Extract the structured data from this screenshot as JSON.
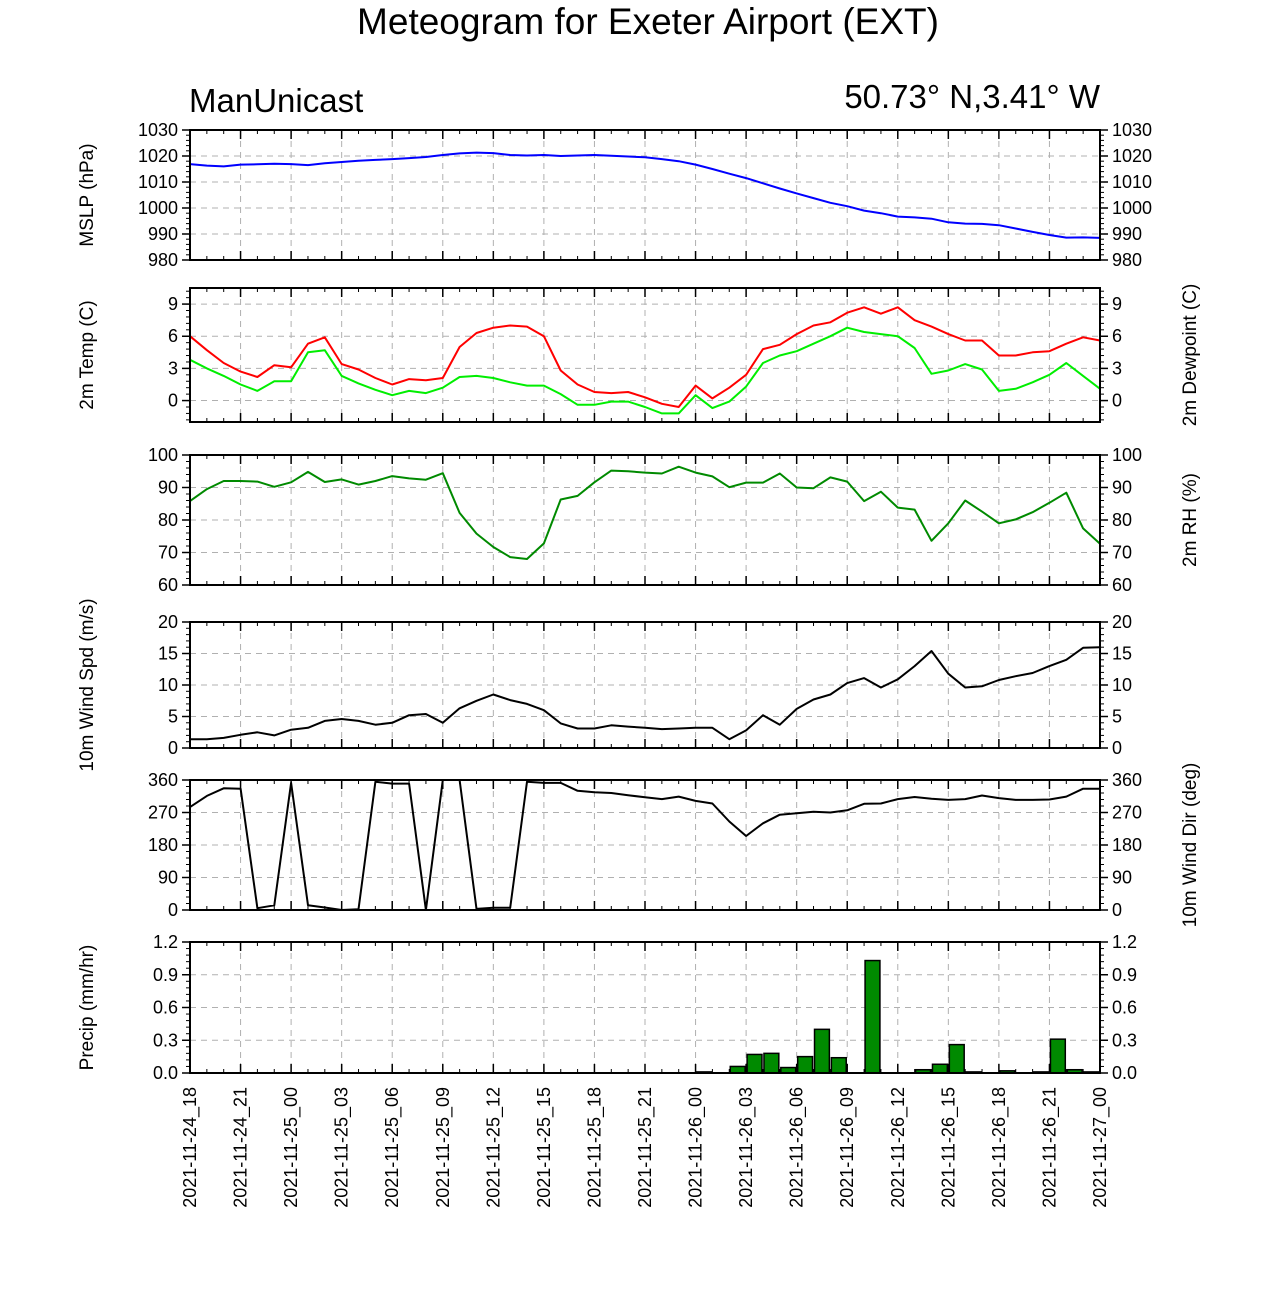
{
  "title": "Meteogram for Exeter Airport (EXT)",
  "model": "ManUnicast",
  "location": "50.73° N,3.41° W",
  "colors": {
    "mslp": "#0000ff",
    "temp": "#ff0000",
    "dewpoint": "#00ee00",
    "rh": "#008a00",
    "wind": "#000000",
    "precip_fill": "#008a00",
    "grid": "#b0b0b0"
  },
  "chart_data": [
    {
      "type": "line",
      "name": "mslp",
      "ylabel": "MSLP (hPa)",
      "ylabel_right": "",
      "ylim": [
        980,
        1030
      ],
      "yticks": [
        980,
        990,
        1000,
        1010,
        1020,
        1030
      ],
      "ytick_labels": [
        "980",
        "990",
        "1000",
        "1010",
        "1020",
        "1030"
      ],
      "x": [
        0,
        1,
        2,
        3,
        4,
        5,
        6,
        7,
        8,
        9,
        10,
        11,
        12,
        13,
        14,
        15,
        16,
        17,
        18,
        19,
        20,
        21,
        22,
        23,
        24,
        25,
        26,
        27,
        28,
        29,
        30,
        31,
        32,
        33,
        34,
        35,
        36,
        37,
        38,
        39,
        40,
        41,
        42,
        43,
        44,
        45,
        46,
        47,
        48,
        49,
        50,
        51,
        52,
        53,
        54
      ],
      "series": [
        {
          "values": [
            1016.9,
            1016.3,
            1016.0,
            1016.7,
            1016.8,
            1017.0,
            1016.9,
            1016.5,
            1017.2,
            1017.7,
            1018.2,
            1018.5,
            1018.8,
            1019.2,
            1019.6,
            1020.4,
            1021.0,
            1021.3,
            1021.1,
            1020.4,
            1020.2,
            1020.4,
            1020.0,
            1020.2,
            1020.4,
            1020.1,
            1019.8,
            1019.5,
            1018.8,
            1018.0,
            1016.7,
            1015.0,
            1013.2,
            1011.5,
            1009.5,
            1007.5,
            1005.6,
            1003.8,
            1002.0,
            1000.7,
            999.0,
            998.0,
            996.7,
            996.4,
            995.9,
            994.5,
            994.0,
            993.9,
            993.4,
            992.1,
            990.8,
            989.6,
            988.6,
            988.7,
            988.5
          ]
        }
      ]
    },
    {
      "type": "line",
      "name": "temp-dewpoint",
      "ylabel": "2m Temp (C)",
      "ylabel_right": "2m Dewpoint (C)",
      "ylim": [
        -2,
        10.5
      ],
      "yticks": [
        0,
        3,
        6,
        9
      ],
      "ytick_labels": [
        "0",
        "3",
        "6",
        "9"
      ],
      "x": [
        0,
        1,
        2,
        3,
        4,
        5,
        6,
        7,
        8,
        9,
        10,
        11,
        12,
        13,
        14,
        15,
        16,
        17,
        18,
        19,
        20,
        21,
        22,
        23,
        24,
        25,
        26,
        27,
        28,
        29,
        30,
        31,
        32,
        33,
        34,
        35,
        36,
        37,
        38,
        39,
        40,
        41,
        42,
        43,
        44,
        45,
        46,
        47,
        48,
        49,
        50,
        51,
        52,
        53,
        54
      ],
      "series": [
        {
          "name": "temp",
          "values": [
            6.0,
            4.7,
            3.5,
            2.7,
            2.2,
            3.3,
            3.1,
            5.3,
            5.9,
            3.4,
            2.9,
            2.1,
            1.5,
            2.0,
            1.9,
            2.1,
            5.0,
            6.3,
            6.8,
            7.0,
            6.9,
            6.0,
            2.8,
            1.5,
            0.8,
            0.7,
            0.8,
            0.3,
            -0.3,
            -0.6,
            1.4,
            0.2,
            1.2,
            2.4,
            4.8,
            5.2,
            6.2,
            7.0,
            7.3,
            8.2,
            8.7,
            8.1,
            8.7,
            7.5,
            6.9,
            6.2,
            5.6,
            5.6,
            4.2,
            4.2,
            4.5,
            4.6,
            5.3,
            5.9,
            5.6
          ]
        },
        {
          "name": "dewpoint",
          "values": [
            3.8,
            3.0,
            2.3,
            1.5,
            0.9,
            1.8,
            1.8,
            4.5,
            4.7,
            2.3,
            1.6,
            1.0,
            0.5,
            0.9,
            0.7,
            1.2,
            2.2,
            2.3,
            2.1,
            1.7,
            1.4,
            1.4,
            0.6,
            -0.4,
            -0.4,
            -0.1,
            -0.1,
            -0.6,
            -1.2,
            -1.2,
            0.5,
            -0.7,
            -0.1,
            1.3,
            3.5,
            4.2,
            4.6,
            5.3,
            6.0,
            6.8,
            6.4,
            6.2,
            6.0,
            4.9,
            2.5,
            2.8,
            3.4,
            2.9,
            0.9,
            1.1,
            1.7,
            2.4,
            3.5,
            2.3,
            1.1
          ]
        }
      ]
    },
    {
      "type": "line",
      "name": "rh",
      "ylabel": "",
      "ylabel_right": "2m RH (%)",
      "ylim": [
        60,
        100
      ],
      "yticks": [
        60,
        70,
        80,
        90,
        100
      ],
      "ytick_labels": [
        "60",
        "70",
        "80",
        "90",
        "100"
      ],
      "x": [
        0,
        1,
        2,
        3,
        4,
        5,
        6,
        7,
        8,
        9,
        10,
        11,
        12,
        13,
        14,
        15,
        16,
        17,
        18,
        19,
        20,
        21,
        22,
        23,
        24,
        25,
        26,
        27,
        28,
        29,
        30,
        31,
        32,
        33,
        34,
        35,
        36,
        37,
        38,
        39,
        40,
        41,
        42,
        43,
        44,
        45,
        46,
        47,
        48,
        49,
        50,
        51,
        52,
        53,
        54
      ],
      "series": [
        {
          "values": [
            85.8,
            89.5,
            92.0,
            92.0,
            91.8,
            90.2,
            91.6,
            94.8,
            91.7,
            92.5,
            90.9,
            92.0,
            93.5,
            92.8,
            92.4,
            94.4,
            82.2,
            75.8,
            71.7,
            68.6,
            68.0,
            72.8,
            86.3,
            87.4,
            91.6,
            95.2,
            95.0,
            94.6,
            94.3,
            96.4,
            94.6,
            93.4,
            90.1,
            91.5,
            91.5,
            94.3,
            90.0,
            89.8,
            93.1,
            91.8,
            85.8,
            88.7,
            83.8,
            83.2,
            73.6,
            79.0,
            86.0,
            82.6,
            79.0,
            80.2,
            82.4,
            85.3,
            88.4,
            77.4,
            72.7
          ]
        }
      ]
    },
    {
      "type": "line",
      "name": "wind-speed",
      "ylabel": "10m Wind Spd (m/s)",
      "ylabel_right": "",
      "ylim": [
        0,
        20
      ],
      "yticks": [
        0,
        5,
        10,
        15,
        20
      ],
      "ytick_labels": [
        "0",
        "5",
        "10",
        "15",
        "20"
      ],
      "x": [
        0,
        1,
        2,
        3,
        4,
        5,
        6,
        7,
        8,
        9,
        10,
        11,
        12,
        13,
        14,
        15,
        16,
        17,
        18,
        19,
        20,
        21,
        22,
        23,
        24,
        25,
        26,
        27,
        28,
        29,
        30,
        31,
        32,
        33,
        34,
        35,
        36,
        37,
        38,
        39,
        40,
        41,
        42,
        43,
        44,
        45,
        46,
        47,
        48,
        49,
        50,
        51,
        52,
        53,
        54
      ],
      "series": [
        {
          "values": [
            1.4,
            1.4,
            1.6,
            2.1,
            2.5,
            2.0,
            2.9,
            3.2,
            4.3,
            4.6,
            4.3,
            3.7,
            4.0,
            5.2,
            5.4,
            4.0,
            6.3,
            7.5,
            8.5,
            7.6,
            7.0,
            6.0,
            3.9,
            3.1,
            3.1,
            3.6,
            3.4,
            3.2,
            3.0,
            3.1,
            3.2,
            3.2,
            1.4,
            2.8,
            5.2,
            3.7,
            6.2,
            7.7,
            8.5,
            10.3,
            11.1,
            9.6,
            10.9,
            13.0,
            15.4,
            11.8,
            9.6,
            9.8,
            10.8,
            11.4,
            11.9,
            13.0,
            14.0,
            15.9,
            16.0
          ]
        }
      ]
    },
    {
      "type": "line",
      "name": "wind-direction",
      "ylabel": "",
      "ylabel_right": "10m Wind Dir (deg)",
      "ylim": [
        0,
        360
      ],
      "yticks": [
        0,
        90,
        180,
        270,
        360
      ],
      "ytick_labels": [
        "0",
        "90",
        "180",
        "270",
        "360"
      ],
      "x": [
        0,
        1,
        2,
        3,
        4,
        5,
        6,
        7,
        8,
        9,
        10,
        11,
        12,
        13,
        14,
        15,
        16,
        17,
        18,
        19,
        20,
        21,
        22,
        23,
        24,
        25,
        26,
        27,
        28,
        29,
        30,
        31,
        32,
        33,
        34,
        35,
        36,
        37,
        38,
        39,
        40,
        41,
        42,
        43,
        44,
        45,
        46,
        47,
        48,
        49,
        50,
        51,
        52,
        53,
        54
      ],
      "series": [
        {
          "values": [
            285,
            316,
            337,
            336,
            5,
            13,
            352,
            13,
            7,
            0,
            2,
            355,
            350,
            350,
            0,
            360,
            360,
            3,
            6,
            6,
            355,
            352,
            352,
            330,
            326,
            324,
            318,
            312,
            307,
            314,
            302,
            295,
            245,
            205,
            240,
            264,
            268,
            272,
            270,
            276,
            294,
            295,
            307,
            313,
            308,
            305,
            307,
            317,
            310,
            305,
            305,
            306,
            314,
            336,
            336
          ]
        }
      ]
    },
    {
      "type": "bar",
      "name": "precip",
      "ylabel": "Precip (mm/hr)",
      "ylabel_right": "",
      "ylim": [
        0,
        1.2
      ],
      "yticks": [
        0,
        0.3,
        0.6,
        0.9,
        1.2
      ],
      "ytick_labels": [
        "0.0",
        "0.3",
        "0.6",
        "0.9",
        "1.2"
      ],
      "x": [
        0,
        1,
        2,
        3,
        4,
        5,
        6,
        7,
        8,
        9,
        10,
        11,
        12,
        13,
        14,
        15,
        16,
        17,
        18,
        19,
        20,
        21,
        22,
        23,
        24,
        25,
        26,
        27,
        28,
        29,
        30,
        31,
        32,
        33,
        34,
        35,
        36,
        37,
        38,
        39,
        40,
        41,
        42,
        43,
        44,
        45,
        46,
        47,
        48,
        49,
        50,
        51,
        52,
        53
      ],
      "series": [
        {
          "values": [
            0,
            0,
            0,
            0,
            0,
            0,
            0,
            0,
            0,
            0,
            0,
            0,
            0,
            0,
            0,
            0,
            0,
            0,
            0,
            0,
            0,
            0,
            0,
            0,
            0,
            0,
            0,
            0,
            0,
            0,
            0.01,
            0,
            0.06,
            0.17,
            0.18,
            0.05,
            0.15,
            0.4,
            0.14,
            0,
            1.03,
            0,
            0,
            0.03,
            0.08,
            0.26,
            0.01,
            0,
            0.02,
            0,
            0.01,
            0.31,
            0.03,
            0.01
          ]
        }
      ]
    }
  ],
  "x_axis": {
    "ticks": [
      0,
      3,
      6,
      9,
      12,
      15,
      18,
      21,
      24,
      27,
      30,
      33,
      36,
      39,
      42,
      45,
      48,
      51,
      54
    ],
    "tick_labels": [
      "2021-11-24_18",
      "2021-11-24_21",
      "2021-11-25_00",
      "2021-11-25_03",
      "2021-11-25_06",
      "2021-11-25_09",
      "2021-11-25_12",
      "2021-11-25_15",
      "2021-11-25_18",
      "2021-11-25_21",
      "2021-11-26_00",
      "2021-11-26_03",
      "2021-11-26_06",
      "2021-11-26_09",
      "2021-11-26_12",
      "2021-11-26_15",
      "2021-11-26_18",
      "2021-11-26_21",
      "2021-11-27_00"
    ],
    "xlim": [
      0,
      54
    ]
  }
}
